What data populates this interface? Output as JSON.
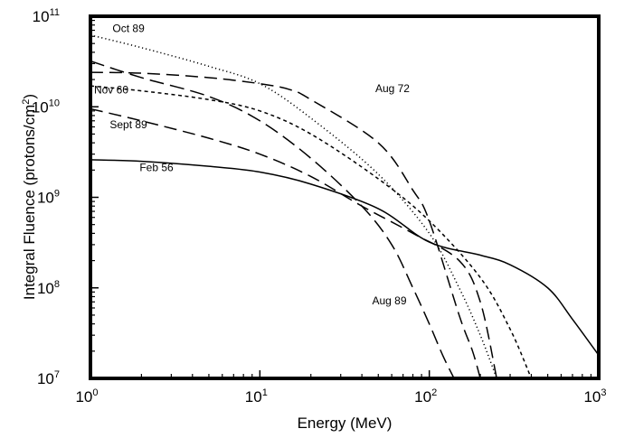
{
  "chart_data": {
    "type": "line",
    "title": "",
    "xlabel": "Energy (MeV)",
    "ylabel_main": "Integral Fluence (protons/cm",
    "ylabel_sup": "2",
    "ylabel_end": ")",
    "x_scale": "log",
    "y_scale": "log",
    "xlim": [
      1,
      1000
    ],
    "ylim": [
      10000000,
      100000000000
    ],
    "grid": false,
    "legend": "none",
    "x_ticks": [
      {
        "value": 1,
        "base": "10",
        "exp": "0"
      },
      {
        "value": 10,
        "base": "10",
        "exp": "1"
      },
      {
        "value": 100,
        "base": "10",
        "exp": "2"
      },
      {
        "value": 1000,
        "base": "10",
        "exp": "3"
      }
    ],
    "y_ticks": [
      {
        "value": 10000000,
        "base": "10",
        "exp": "7"
      },
      {
        "value": 100000000,
        "base": "10",
        "exp": "8"
      },
      {
        "value": 1000000000,
        "base": "10",
        "exp": "9"
      },
      {
        "value": 10000000000,
        "base": "10",
        "exp": "10"
      },
      {
        "value": 100000000000,
        "base": "10",
        "exp": "11"
      }
    ],
    "series": [
      {
        "name": "Oct 89",
        "style": "dotted",
        "label_at": [
          1.35,
          67000000000
        ],
        "points": [
          [
            1,
            62000000000
          ],
          [
            2,
            45000000000
          ],
          [
            5,
            28000000000
          ],
          [
            10,
            18000000000
          ],
          [
            20,
            7500000000
          ],
          [
            50,
            1800000000
          ],
          [
            100,
            400000000
          ],
          [
            150,
            100000000
          ],
          [
            200,
            30000000
          ],
          [
            250,
            10000000
          ]
        ]
      },
      {
        "name": "Aug 72",
        "style": "long-dash",
        "label_at": [
          48,
          14500000000
        ],
        "points": [
          [
            1,
            24000000000
          ],
          [
            2,
            23500000000
          ],
          [
            5,
            21000000000
          ],
          [
            10,
            18000000000
          ],
          [
            15,
            15500000000
          ],
          [
            20,
            12000000000
          ],
          [
            50,
            4000000000
          ],
          [
            80,
            1200000000
          ],
          [
            100,
            550000000
          ],
          [
            150,
            50000000
          ],
          [
            180,
            20000000
          ],
          [
            200,
            10000000
          ]
        ]
      },
      {
        "name": "Nov 60",
        "style": "short-dash",
        "label_at": [
          1.05,
          14000000000
        ],
        "points": [
          [
            1,
            17000000000
          ],
          [
            2,
            15000000000
          ],
          [
            5,
            12000000000
          ],
          [
            10,
            9000000000
          ],
          [
            20,
            5000000000
          ],
          [
            50,
            1600000000
          ],
          [
            100,
            550000000
          ],
          [
            200,
            130000000
          ],
          [
            300,
            35000000
          ],
          [
            400,
            10000000
          ]
        ]
      },
      {
        "name": "Sept 89",
        "style": "long-dash",
        "label_at": [
          1.3,
          5800000000
        ],
        "points": [
          [
            1,
            9500000000
          ],
          [
            2,
            7000000000
          ],
          [
            5,
            4500000000
          ],
          [
            10,
            3000000000
          ],
          [
            20,
            1700000000
          ],
          [
            40,
            800000000
          ],
          [
            80,
            400000000
          ],
          [
            150,
            200000000
          ],
          [
            200,
            70000000
          ],
          [
            250,
            10000000
          ]
        ]
      },
      {
        "name": "Feb 56",
        "style": "solid",
        "label_at": [
          1.95,
          1950000000
        ],
        "points": [
          [
            1,
            2600000000
          ],
          [
            2,
            2500000000
          ],
          [
            5,
            2200000000
          ],
          [
            10,
            1900000000
          ],
          [
            20,
            1400000000
          ],
          [
            50,
            750000000
          ],
          [
            100,
            320000000
          ],
          [
            200,
            230000000
          ],
          [
            300,
            180000000
          ],
          [
            500,
            100000000
          ],
          [
            700,
            45000000
          ],
          [
            1000,
            18000000
          ]
        ]
      },
      {
        "name": "Aug 89",
        "style": "dash-dot",
        "label_at": [
          46,
          66000000
        ],
        "points": [
          [
            1,
            32000000000
          ],
          [
            2,
            21000000000
          ],
          [
            5,
            13000000000
          ],
          [
            10,
            7000000000
          ],
          [
            20,
            2700000000
          ],
          [
            40,
            800000000
          ],
          [
            60,
            300000000
          ],
          [
            80,
            100000000
          ],
          [
            100,
            40000000
          ],
          [
            120,
            18000000
          ],
          [
            140,
            10000000
          ]
        ]
      }
    ]
  }
}
